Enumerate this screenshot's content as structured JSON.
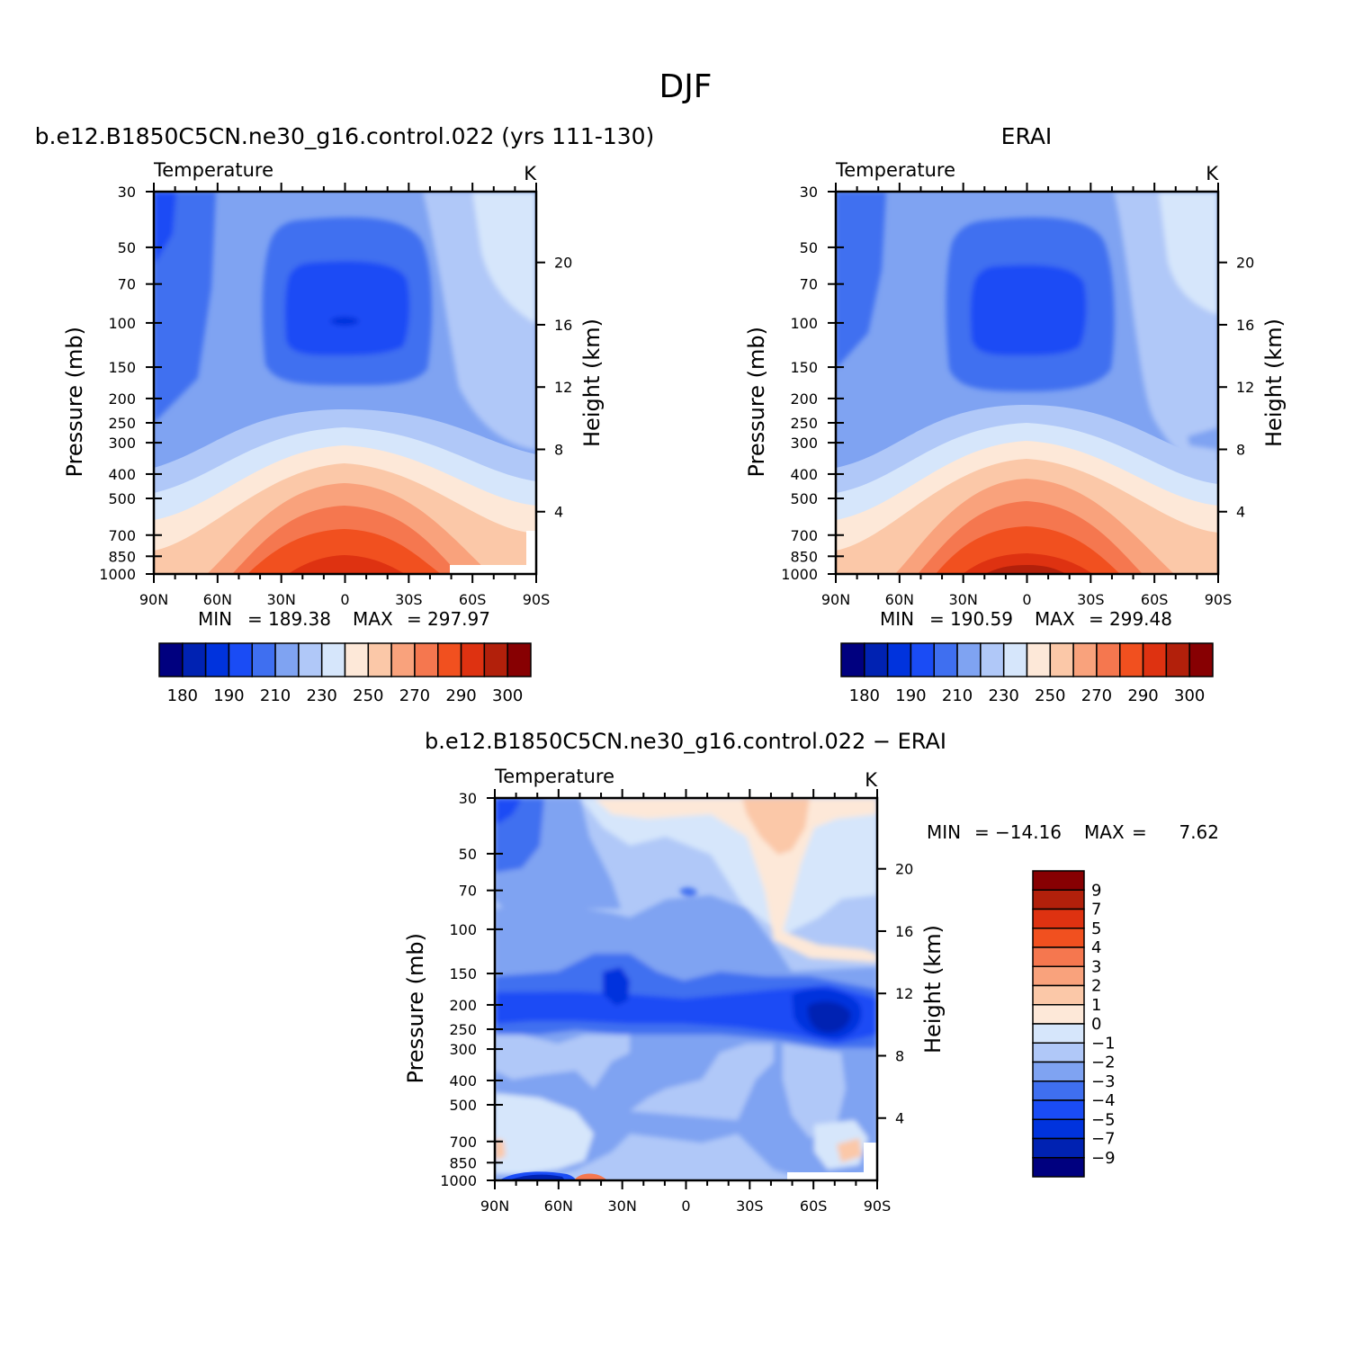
{
  "figure": {
    "title": "DJF"
  },
  "palette": {
    "temperature": [
      "#00007f",
      "#0022b2",
      "#0033dd",
      "#1a4cf5",
      "#3f6ff0",
      "#7fa3f2",
      "#b0c8f8",
      "#d6e6fb",
      "#fde8d8",
      "#fbc8a8",
      "#f9a27c",
      "#f5774f",
      "#f1501f",
      "#de3211",
      "#b2200b",
      "#870002"
    ],
    "difference": [
      "#00007f",
      "#0022b2",
      "#0033dd",
      "#1a4cf5",
      "#3f6ff0",
      "#7fa3f2",
      "#b0c8f8",
      "#d6e6fb",
      "#fde8d8",
      "#fbc8a8",
      "#f9a27c",
      "#f5774f",
      "#f1501f",
      "#de3211",
      "#b2200b",
      "#870002"
    ]
  },
  "chart_data": [
    {
      "type": "heatmap",
      "title": "b.e12.B1850C5CN.ne30_g16.control.022 (yrs 111-130)",
      "left_label": "Temperature",
      "right_label": "K",
      "ylabel": "Pressure (mb)",
      "y2label": "Height (km)",
      "x_ticks": [
        "90N",
        "60N",
        "30N",
        "0",
        "30S",
        "60S",
        "90S"
      ],
      "y_ticks": [
        30,
        50,
        70,
        100,
        150,
        200,
        250,
        300,
        400,
        500,
        700,
        850,
        1000
      ],
      "y2_ticks": [
        4,
        8,
        12,
        16,
        20
      ],
      "stats": {
        "min_label": "MIN",
        "min": "189.38",
        "max_label": "MAX",
        "max": "297.97"
      },
      "colorbar_labels": [
        "180",
        "190",
        "210",
        "230",
        "250",
        "270",
        "290",
        "300"
      ]
    },
    {
      "type": "heatmap",
      "title": "ERAI",
      "left_label": "Temperature",
      "right_label": "K",
      "ylabel": "Pressure (mb)",
      "y2label": "Height (km)",
      "x_ticks": [
        "90N",
        "60N",
        "30N",
        "0",
        "30S",
        "60S",
        "90S"
      ],
      "y_ticks": [
        30,
        50,
        70,
        100,
        150,
        200,
        250,
        300,
        400,
        500,
        700,
        850,
        1000
      ],
      "y2_ticks": [
        4,
        8,
        12,
        16,
        20
      ],
      "stats": {
        "min_label": "MIN",
        "min": "190.59",
        "max_label": "MAX",
        "max": "299.48"
      },
      "colorbar_labels": [
        "180",
        "190",
        "210",
        "230",
        "250",
        "270",
        "290",
        "300"
      ]
    },
    {
      "type": "heatmap",
      "title": "b.e12.B1850C5CN.ne30_g16.control.022 − ERAI",
      "left_label": "Temperature",
      "right_label": "K",
      "ylabel": "Pressure (mb)",
      "y2label": "Height (km)",
      "x_ticks": [
        "90N",
        "60N",
        "30N",
        "0",
        "30S",
        "60S",
        "90S"
      ],
      "y_ticks": [
        30,
        50,
        70,
        100,
        150,
        200,
        250,
        300,
        400,
        500,
        700,
        850,
        1000
      ],
      "y2_ticks": [
        4,
        8,
        12,
        16,
        20
      ],
      "stats": {
        "min_label": "MIN",
        "min": "−14.16",
        "max_label": "MAX",
        "max": "7.62"
      },
      "colorbar_labels": [
        "9",
        "7",
        "5",
        "4",
        "3",
        "2",
        "1",
        "0",
        "−1",
        "−2",
        "−3",
        "−4",
        "−5",
        "−7",
        "−9"
      ]
    }
  ]
}
